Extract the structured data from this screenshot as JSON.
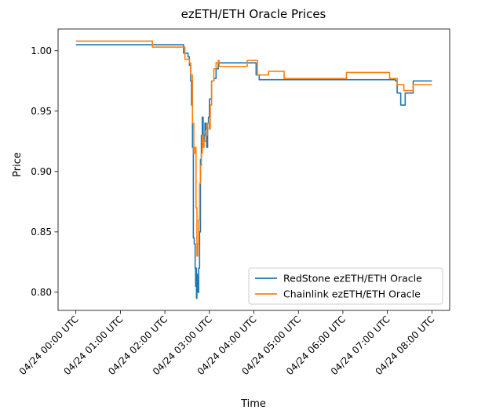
{
  "chart_data": {
    "type": "line",
    "title": "ezETH/ETH Oracle Prices",
    "xlabel": "Time",
    "ylabel": "Price",
    "xlim": [
      -0.4,
      8.4
    ],
    "ylim": [
      0.785,
      1.018
    ],
    "x_ticks": [
      {
        "value": 0,
        "label": "04/24 00:00 UTC"
      },
      {
        "value": 1,
        "label": "04/24 01:00 UTC"
      },
      {
        "value": 2,
        "label": "04/24 02:00 UTC"
      },
      {
        "value": 3,
        "label": "04/24 03:00 UTC"
      },
      {
        "value": 4,
        "label": "04/24 04:00 UTC"
      },
      {
        "value": 5,
        "label": "04/24 05:00 UTC"
      },
      {
        "value": 6,
        "label": "04/24 06:00 UTC"
      },
      {
        "value": 7,
        "label": "04/24 07:00 UTC"
      },
      {
        "value": 8,
        "label": "04/24 08:00 UTC"
      }
    ],
    "y_ticks": [
      {
        "value": 0.8,
        "label": "0.80"
      },
      {
        "value": 0.85,
        "label": "0.85"
      },
      {
        "value": 0.9,
        "label": "0.90"
      },
      {
        "value": 0.95,
        "label": "0.95"
      },
      {
        "value": 1.0,
        "label": "1.00"
      }
    ],
    "grid": false,
    "legend_position": "bottom-right",
    "series": [
      {
        "name": "RedStone ezETH/ETH Oracle",
        "color": "#1f77b4",
        "step": true,
        "points": [
          [
            0.0,
            1.005
          ],
          [
            2.4,
            1.005
          ],
          [
            2.42,
            0.998
          ],
          [
            2.52,
            0.995
          ],
          [
            2.55,
            0.988
          ],
          [
            2.58,
            0.975
          ],
          [
            2.6,
            0.955
          ],
          [
            2.62,
            0.92
          ],
          [
            2.64,
            0.845
          ],
          [
            2.66,
            0.84
          ],
          [
            2.68,
            0.82
          ],
          [
            2.69,
            0.805
          ],
          [
            2.7,
            0.82
          ],
          [
            2.71,
            0.795
          ],
          [
            2.72,
            0.815
          ],
          [
            2.73,
            0.81
          ],
          [
            2.74,
            0.8
          ],
          [
            2.76,
            0.82
          ],
          [
            2.78,
            0.85
          ],
          [
            2.8,
            0.91
          ],
          [
            2.82,
            0.93
          ],
          [
            2.84,
            0.945
          ],
          [
            2.86,
            0.925
          ],
          [
            2.88,
            0.93
          ],
          [
            2.9,
            0.94
          ],
          [
            2.92,
            0.935
          ],
          [
            2.94,
            0.92
          ],
          [
            2.96,
            0.94
          ],
          [
            2.98,
            0.945
          ],
          [
            3.0,
            0.96
          ],
          [
            3.05,
            0.975
          ],
          [
            3.1,
            0.977
          ],
          [
            3.15,
            0.985
          ],
          [
            3.2,
            0.99
          ],
          [
            4.0,
            0.99
          ],
          [
            4.05,
            0.98
          ],
          [
            4.12,
            0.976
          ],
          [
            7.0,
            0.976
          ],
          [
            7.18,
            0.975
          ],
          [
            7.22,
            0.965
          ],
          [
            7.3,
            0.955
          ],
          [
            7.4,
            0.965
          ],
          [
            7.55,
            0.965
          ],
          [
            7.58,
            0.975
          ],
          [
            8.0,
            0.975
          ]
        ]
      },
      {
        "name": "Chainlink ezETH/ETH Oracle",
        "color": "#ff7f0e",
        "step": true,
        "points": [
          [
            0.0,
            1.008
          ],
          [
            1.7,
            1.008
          ],
          [
            1.72,
            1.003
          ],
          [
            2.4,
            1.003
          ],
          [
            2.45,
            0.993
          ],
          [
            2.55,
            0.99
          ],
          [
            2.58,
            0.98
          ],
          [
            2.62,
            0.94
          ],
          [
            2.65,
            0.915
          ],
          [
            2.67,
            0.92
          ],
          [
            2.7,
            0.87
          ],
          [
            2.72,
            0.83
          ],
          [
            2.74,
            0.84
          ],
          [
            2.76,
            0.86
          ],
          [
            2.78,
            0.89
          ],
          [
            2.8,
            0.905
          ],
          [
            2.82,
            0.915
          ],
          [
            2.84,
            0.93
          ],
          [
            2.86,
            0.92
          ],
          [
            2.88,
            0.925
          ],
          [
            2.92,
            0.93
          ],
          [
            2.95,
            0.94
          ],
          [
            3.0,
            0.935
          ],
          [
            3.02,
            0.955
          ],
          [
            3.05,
            0.975
          ],
          [
            3.1,
            0.985
          ],
          [
            3.15,
            0.99
          ],
          [
            3.2,
            0.992
          ],
          [
            3.22,
            0.987
          ],
          [
            3.8,
            0.987
          ],
          [
            3.85,
            0.992
          ],
          [
            4.05,
            0.992
          ],
          [
            4.08,
            0.98
          ],
          [
            4.3,
            0.98
          ],
          [
            4.33,
            0.983
          ],
          [
            4.65,
            0.983
          ],
          [
            4.68,
            0.977
          ],
          [
            6.05,
            0.977
          ],
          [
            6.08,
            0.982
          ],
          [
            7.0,
            0.982
          ],
          [
            7.05,
            0.977
          ],
          [
            7.18,
            0.977
          ],
          [
            7.22,
            0.972
          ],
          [
            7.35,
            0.972
          ],
          [
            7.37,
            0.967
          ],
          [
            7.55,
            0.967
          ],
          [
            7.58,
            0.972
          ],
          [
            8.0,
            0.972
          ]
        ]
      }
    ]
  }
}
